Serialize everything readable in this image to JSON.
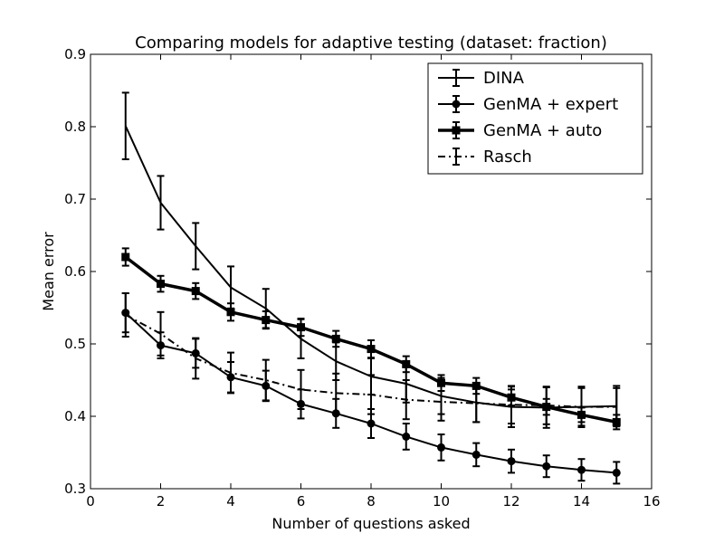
{
  "chart_data": {
    "type": "line",
    "title": "Comparing models for adaptive testing (dataset: fraction)",
    "xlabel": "Number of questions asked",
    "ylabel": "Mean error",
    "xlim": [
      0,
      16
    ],
    "ylim": [
      0.3,
      0.9
    ],
    "xticks": [
      0,
      2,
      4,
      6,
      8,
      10,
      12,
      14,
      16
    ],
    "yticks": [
      0.3,
      0.4,
      0.5,
      0.6,
      0.7,
      0.8,
      0.9
    ],
    "xtick_labels": [
      "0",
      "2",
      "4",
      "6",
      "8",
      "10",
      "12",
      "14",
      "16"
    ],
    "ytick_labels": [
      "0.3",
      "0.4",
      "0.5",
      "0.6",
      "0.7",
      "0.8",
      "0.9"
    ],
    "grid": false,
    "legend_position": "top-right",
    "x": [
      1,
      2,
      3,
      4,
      5,
      6,
      7,
      8,
      9,
      10,
      11,
      12,
      13,
      14,
      15
    ],
    "series": [
      {
        "name": "DINA",
        "marker": "none",
        "linestyle": "solid",
        "values": [
          0.801,
          0.695,
          0.635,
          0.578,
          0.549,
          0.507,
          0.476,
          0.455,
          0.445,
          0.428,
          0.419,
          0.413,
          0.412,
          0.413,
          0.414
        ],
        "errors": [
          0.046,
          0.037,
          0.032,
          0.029,
          0.027,
          0.027,
          0.026,
          0.025,
          0.026,
          0.025,
          0.027,
          0.028,
          0.028,
          0.028,
          0.028
        ]
      },
      {
        "name": "GenMA + expert",
        "marker": "circle",
        "linestyle": "solid",
        "values": [
          0.543,
          0.498,
          0.487,
          0.454,
          0.442,
          0.417,
          0.404,
          0.39,
          0.372,
          0.357,
          0.347,
          0.338,
          0.331,
          0.326,
          0.322
        ],
        "errors": [
          0.027,
          0.018,
          0.02,
          0.021,
          0.021,
          0.02,
          0.02,
          0.02,
          0.018,
          0.018,
          0.016,
          0.016,
          0.015,
          0.015,
          0.015
        ]
      },
      {
        "name": "GenMA + auto",
        "marker": "square",
        "linestyle": "solid",
        "values": [
          0.62,
          0.583,
          0.573,
          0.544,
          0.533,
          0.523,
          0.507,
          0.493,
          0.472,
          0.446,
          0.442,
          0.426,
          0.413,
          0.402,
          0.392
        ],
        "errors": [
          0.012,
          0.011,
          0.011,
          0.012,
          0.012,
          0.012,
          0.011,
          0.012,
          0.011,
          0.011,
          0.011,
          0.011,
          0.011,
          0.01,
          0.01
        ]
      },
      {
        "name": "Rasch",
        "marker": "none",
        "linestyle": "dashdot",
        "values": [
          0.54,
          0.514,
          0.48,
          0.46,
          0.45,
          0.437,
          0.432,
          0.43,
          0.423,
          0.42,
          0.418,
          0.416,
          0.415,
          0.413,
          0.413
        ],
        "errors": [
          0.03,
          0.03,
          0.028,
          0.028,
          0.028,
          0.027,
          0.027,
          0.027,
          0.027,
          0.026,
          0.026,
          0.026,
          0.026,
          0.026,
          0.026
        ]
      }
    ]
  }
}
